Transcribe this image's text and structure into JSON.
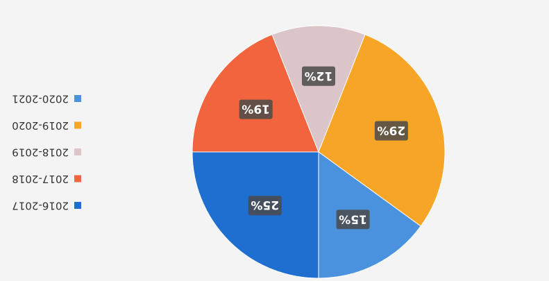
{
  "chart_data": {
    "type": "pie",
    "categories": [
      "2016-2017",
      "2017-2018",
      "2018-2019",
      "2019-2020",
      "2020-2021"
    ],
    "values": [
      25,
      19,
      12,
      29,
      15
    ],
    "value_labels": [
      "25%",
      "19%",
      "12%",
      "29%",
      "15%"
    ],
    "colors": [
      "#1f6fd1",
      "#f2643d",
      "#dcc5c9",
      "#f7a527",
      "#4b92de"
    ],
    "legend": "right"
  }
}
